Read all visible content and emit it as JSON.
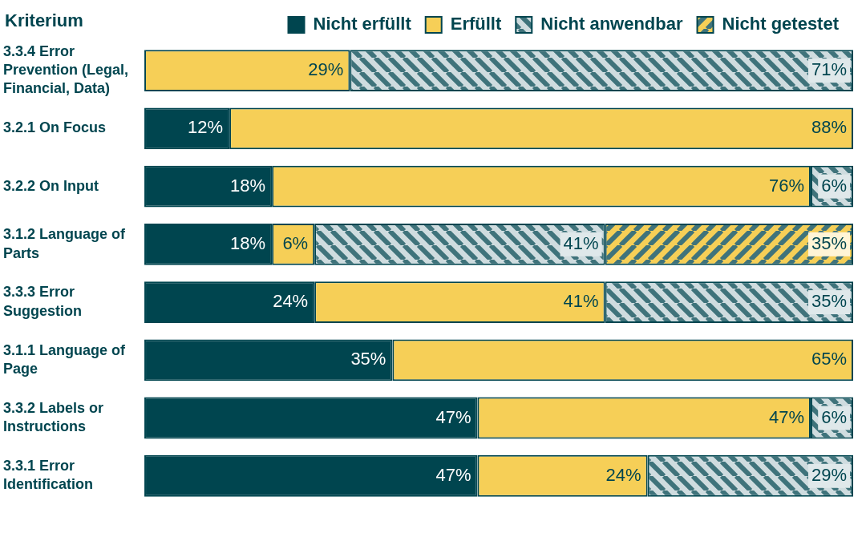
{
  "chart_data": {
    "type": "bar",
    "orientation": "horizontal",
    "stacked": true,
    "data_labels": true,
    "tick_labels": "y",
    "grid": false,
    "legend": "top",
    "ylabel": "Kriterium",
    "xlim": [
      0,
      100
    ],
    "categories": [
      "3.3.4 Error Prevention (Legal, Financial, Data)",
      "3.2.1 On Focus",
      "3.2.2 On Input",
      "3.1.2 Language of Parts",
      "3.3.3 Error Suggestion",
      "3.1.1 Language of Page",
      "3.3.2 Labels or Instructions",
      "3.3.1 Error Identification"
    ],
    "series": [
      {
        "name": "Nicht erfüllt",
        "color": "#00454f",
        "values": [
          null,
          12,
          18,
          18,
          24,
          35,
          47,
          47
        ],
        "value_labels": [
          null,
          "12%",
          "18%",
          "18%",
          "24%",
          "35%",
          "47%",
          "47%"
        ]
      },
      {
        "name": "Erfüllt",
        "color": "#f6cf57",
        "values": [
          29,
          88,
          76,
          6,
          41,
          65,
          47,
          24
        ],
        "value_labels": [
          "29%",
          "88%",
          "76%",
          "6%",
          "41%",
          "65%",
          "47%",
          "24%"
        ]
      },
      {
        "name": "Nicht anwendbar",
        "color": "#cfdcdf",
        "marker": "hatch_back",
        "values": [
          71,
          null,
          6,
          41,
          35,
          null,
          6,
          29
        ],
        "value_labels": [
          "71%",
          null,
          "6%",
          "41%",
          "35%",
          null,
          "6%",
          "29%"
        ]
      },
      {
        "name": "Nicht getestet",
        "color": "#f6cf57",
        "marker": "hatch",
        "values": [
          null,
          null,
          null,
          35,
          null,
          null,
          null,
          null
        ],
        "value_labels": [
          null,
          null,
          null,
          "35%",
          null,
          null,
          null,
          null
        ]
      }
    ]
  }
}
